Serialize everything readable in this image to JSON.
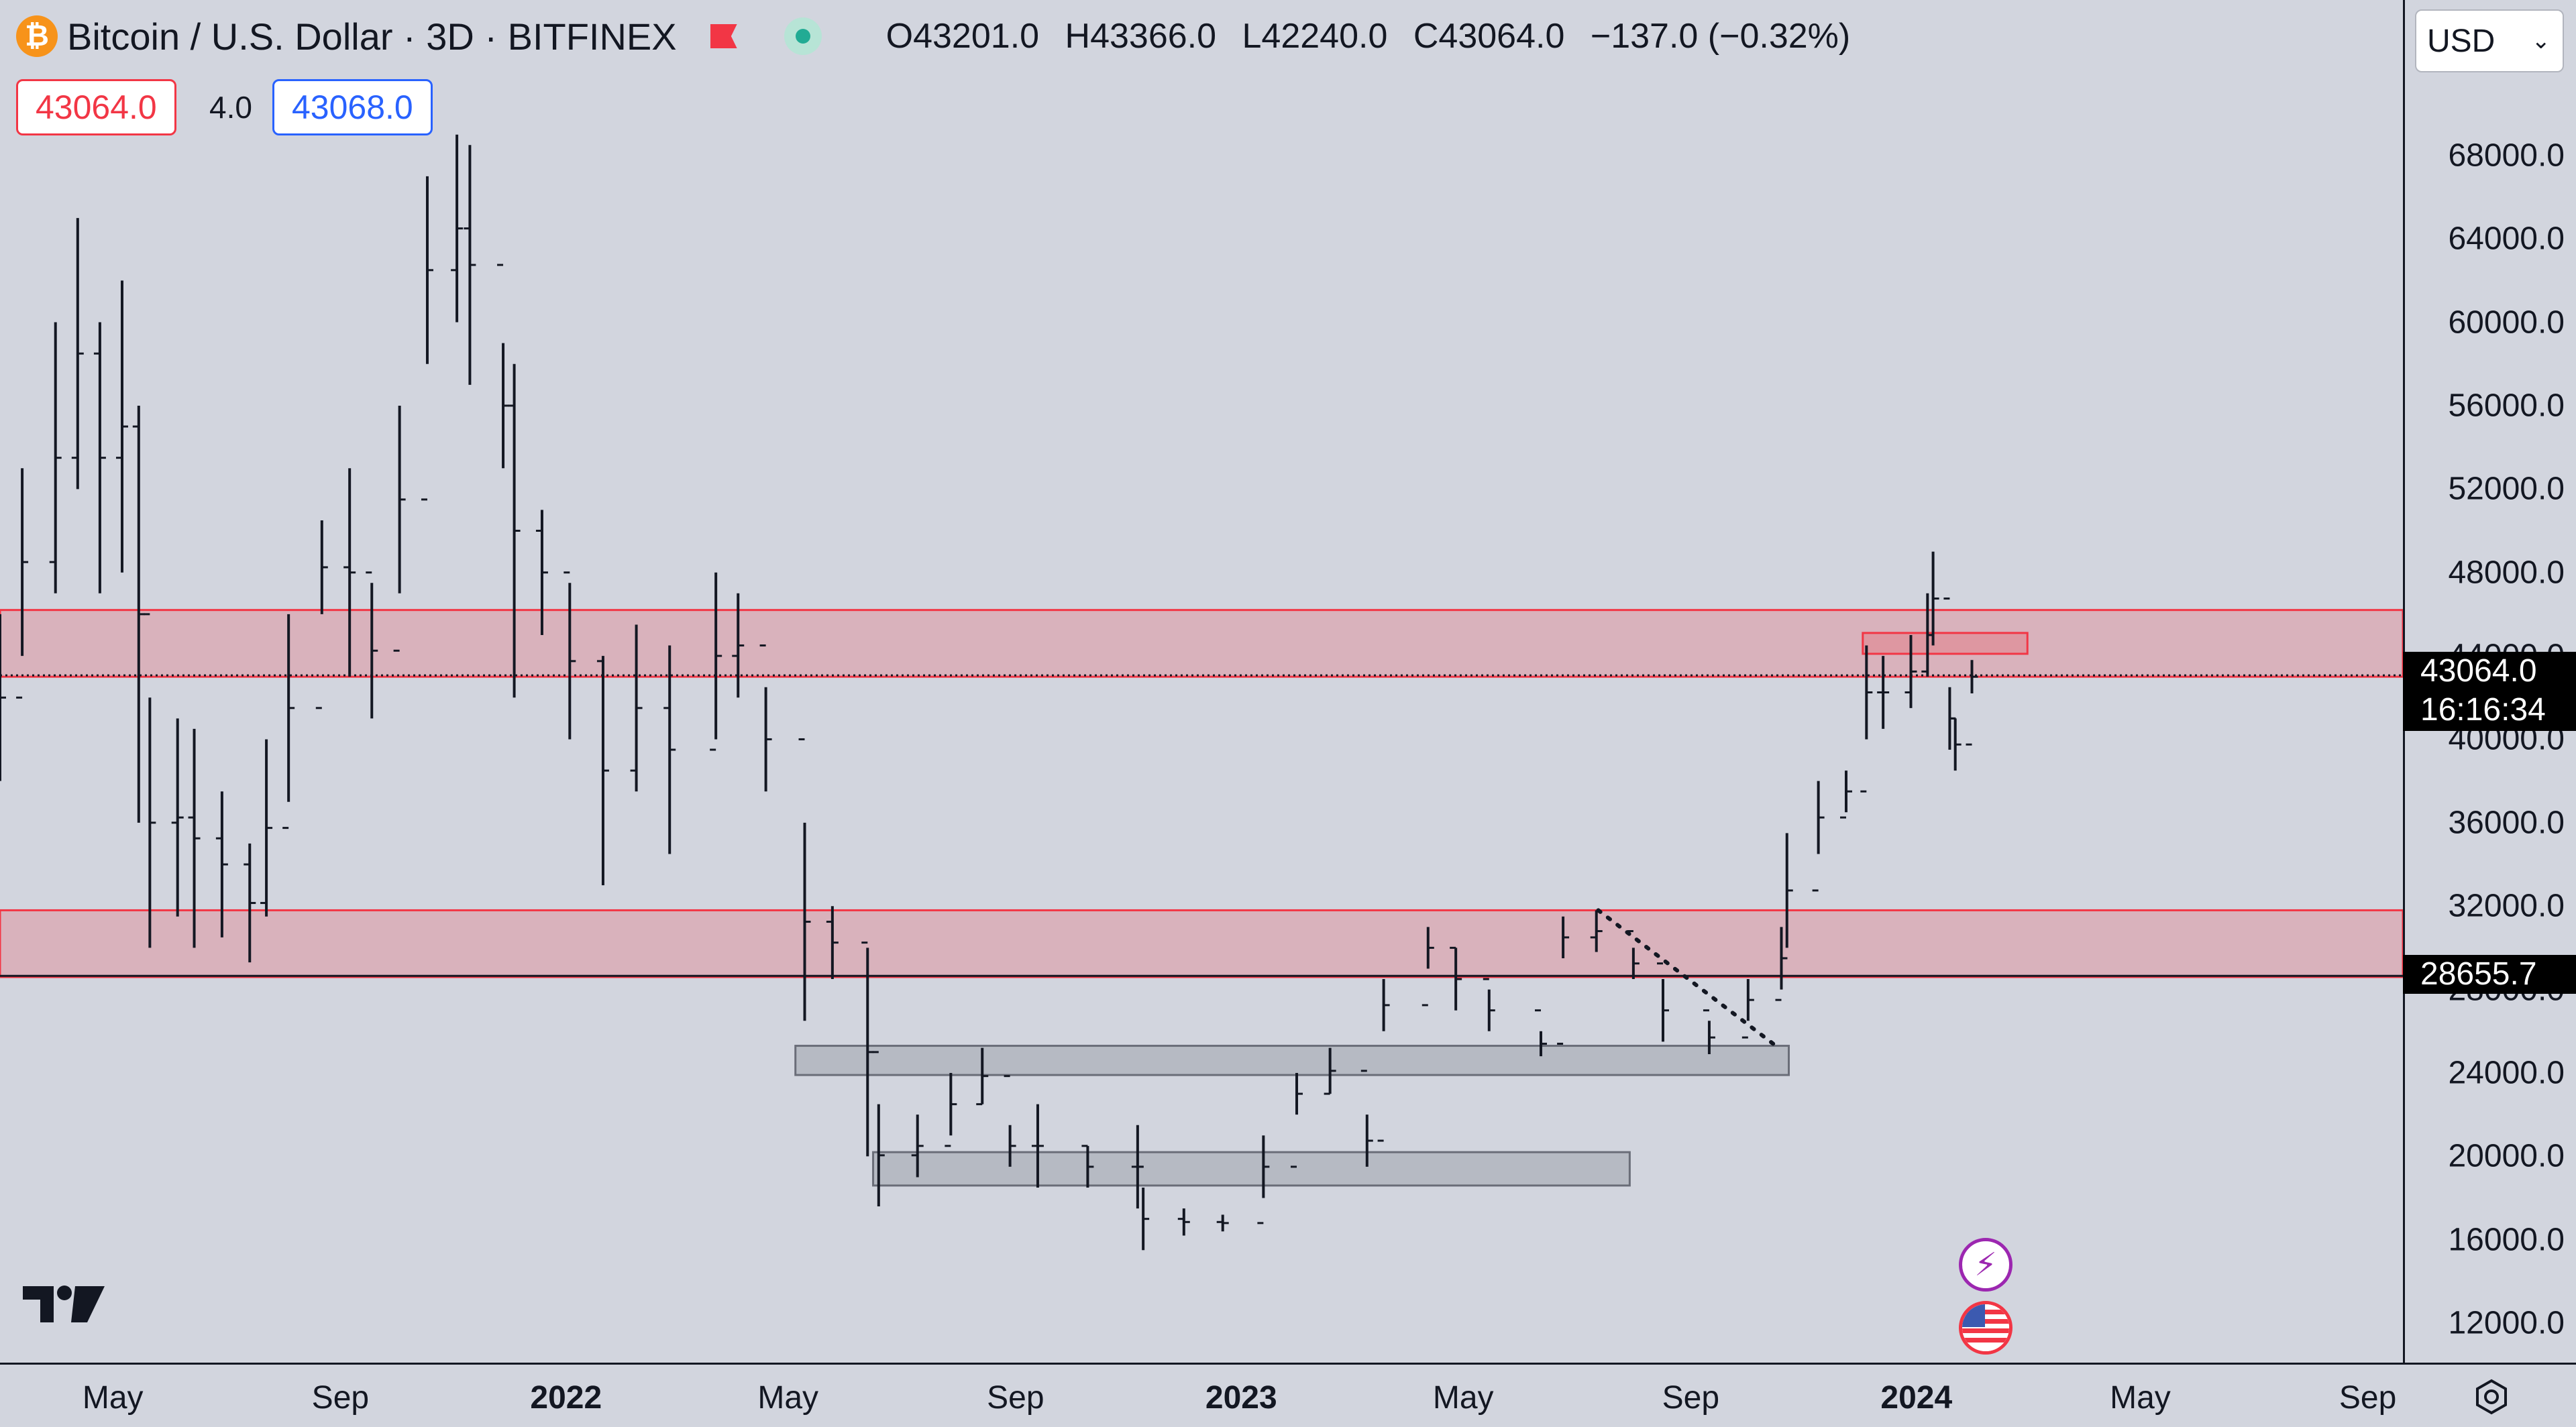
{
  "header": {
    "coin_glyph": "₿",
    "title": "Bitcoin / U.S. Dollar · 3D · BITFINEX",
    "ohlc": {
      "o": "O43201.0",
      "h": "H43366.0",
      "l": "L42240.0",
      "c": "C43064.0",
      "change": "−137.0 (−0.32%)"
    }
  },
  "trade": {
    "sell": "43064.0",
    "spread": "4.0",
    "buy": "43068.0"
  },
  "currency": "USD",
  "icons": [
    "bitcoin-icon",
    "flag-icon",
    "market-status-icon",
    "tradingview-logo",
    "bolt-icon",
    "us-flag-icon",
    "settings-icon"
  ],
  "colors": {
    "zone_red": "#f23645",
    "zone_gray": "#9598a1",
    "bar": "#131722",
    "background": "#d2d5de"
  },
  "price_axis": {
    "ticks": [
      "68000.0",
      "64000.0",
      "60000.0",
      "56000.0",
      "52000.0",
      "48000.0",
      "44000.0",
      "40000.0",
      "36000.0",
      "32000.0",
      "28000.0",
      "24000.0",
      "20000.0",
      "16000.0",
      "12000.0"
    ],
    "last_price": "43064.0",
    "countdown": "16:16:34",
    "level_label": "28655.7"
  },
  "time_axis": {
    "ticks": [
      {
        "label": "May",
        "bold": false
      },
      {
        "label": "Sep",
        "bold": false
      },
      {
        "label": "2022",
        "bold": true
      },
      {
        "label": "May",
        "bold": false
      },
      {
        "label": "Sep",
        "bold": false
      },
      {
        "label": "2023",
        "bold": true
      },
      {
        "label": "May",
        "bold": false
      },
      {
        "label": "Sep",
        "bold": false
      },
      {
        "label": "2024",
        "bold": true
      },
      {
        "label": "May",
        "bold": false
      },
      {
        "label": "Sep",
        "bold": false
      }
    ]
  },
  "chart_data": {
    "type": "ohlc-bar",
    "timeframe": "3D",
    "symbol": "BTCUSD",
    "exchange": "BITFINEX",
    "x_range": [
      "2021-03-01",
      "2024-09-20"
    ],
    "y_range": [
      10000,
      71000
    ],
    "y_ticks": [
      12000,
      16000,
      20000,
      24000,
      28000,
      32000,
      36000,
      40000,
      44000,
      48000,
      52000,
      56000,
      60000,
      64000,
      68000
    ],
    "last_price": 43064.0,
    "horizontal_lines": [
      {
        "price": 43064.0,
        "style": "dotted"
      },
      {
        "price": 28655.7,
        "style": "solid"
      }
    ],
    "zones": [
      {
        "label": "resistance",
        "from": "2021-03-01",
        "to": "2024-09-20",
        "low": 43000,
        "high": 46200,
        "color": "red"
      },
      {
        "label": "support-resistance",
        "from": "2021-03-01",
        "to": "2024-09-20",
        "low": 28600,
        "high": 31800,
        "color": "red"
      },
      {
        "label": "box",
        "from": "2023-12-03",
        "to": "2024-03-01",
        "low": 44100,
        "high": 45100,
        "color": "red"
      },
      {
        "label": "support",
        "from": "2022-05-05",
        "to": "2023-10-24",
        "low": 23900,
        "high": 25300,
        "color": "gray"
      },
      {
        "label": "support",
        "from": "2022-06-16",
        "to": "2023-07-30",
        "low": 18600,
        "high": 20200,
        "color": "gray"
      }
    ],
    "trendline": {
      "from": [
        "2023-07-13",
        31800
      ],
      "to": [
        "2023-10-17",
        25300
      ],
      "style": "dotted"
    },
    "bars": [
      {
        "date": "2021-03-01",
        "high": 46000,
        "low": 38000
      },
      {
        "date": "2021-03-13",
        "high": 53000,
        "low": 44000
      },
      {
        "date": "2021-03-31",
        "high": 60000,
        "low": 47000
      },
      {
        "date": "2021-04-12",
        "high": 65000,
        "low": 52000
      },
      {
        "date": "2021-04-24",
        "high": 60000,
        "low": 47000
      },
      {
        "date": "2021-05-06",
        "high": 62000,
        "low": 48000
      },
      {
        "date": "2021-05-15",
        "high": 56000,
        "low": 36000
      },
      {
        "date": "2021-05-21",
        "high": 42000,
        "low": 30000
      },
      {
        "date": "2021-06-05",
        "high": 41000,
        "low": 31500
      },
      {
        "date": "2021-06-14",
        "high": 40500,
        "low": 30000
      },
      {
        "date": "2021-06-29",
        "high": 37500,
        "low": 30500
      },
      {
        "date": "2021-07-14",
        "high": 35000,
        "low": 29300
      },
      {
        "date": "2021-07-23",
        "high": 40000,
        "low": 31500
      },
      {
        "date": "2021-08-04",
        "high": 46000,
        "low": 37000
      },
      {
        "date": "2021-08-22",
        "high": 50500,
        "low": 46000
      },
      {
        "date": "2021-09-06",
        "high": 53000,
        "low": 43000
      },
      {
        "date": "2021-09-18",
        "high": 47500,
        "low": 41000
      },
      {
        "date": "2021-10-03",
        "high": 56000,
        "low": 47000
      },
      {
        "date": "2021-10-18",
        "high": 67000,
        "low": 58000
      },
      {
        "date": "2021-11-03",
        "high": 69000,
        "low": 60000
      },
      {
        "date": "2021-11-10",
        "high": 68500,
        "low": 57000
      },
      {
        "date": "2021-11-28",
        "high": 59000,
        "low": 53000
      },
      {
        "date": "2021-12-04",
        "high": 58000,
        "low": 42000
      },
      {
        "date": "2021-12-19",
        "high": 51000,
        "low": 45000
      },
      {
        "date": "2022-01-03",
        "high": 47500,
        "low": 40000
      },
      {
        "date": "2022-01-21",
        "high": 44000,
        "low": 33000
      },
      {
        "date": "2022-02-08",
        "high": 45500,
        "low": 37500
      },
      {
        "date": "2022-02-26",
        "high": 44500,
        "low": 34500
      },
      {
        "date": "2022-03-23",
        "high": 48000,
        "low": 40000
      },
      {
        "date": "2022-04-04",
        "high": 47000,
        "low": 42000
      },
      {
        "date": "2022-04-19",
        "high": 42500,
        "low": 37500
      },
      {
        "date": "2022-05-10",
        "high": 36000,
        "low": 26500
      },
      {
        "date": "2022-05-25",
        "high": 32000,
        "low": 28500
      },
      {
        "date": "2022-06-13",
        "high": 30000,
        "low": 20000
      },
      {
        "date": "2022-06-19",
        "high": 22500,
        "low": 17600
      },
      {
        "date": "2022-07-10",
        "high": 22000,
        "low": 19000
      },
      {
        "date": "2022-07-28",
        "high": 24000,
        "low": 21000
      },
      {
        "date": "2022-08-14",
        "high": 25200,
        "low": 22500
      },
      {
        "date": "2022-08-29",
        "high": 21500,
        "low": 19500
      },
      {
        "date": "2022-09-13",
        "high": 22500,
        "low": 18500
      },
      {
        "date": "2022-10-10",
        "high": 20500,
        "low": 18500
      },
      {
        "date": "2022-11-06",
        "high": 21500,
        "low": 17500
      },
      {
        "date": "2022-11-09",
        "high": 18500,
        "low": 15500
      },
      {
        "date": "2022-12-01",
        "high": 17500,
        "low": 16200
      },
      {
        "date": "2022-12-22",
        "high": 17200,
        "low": 16400
      },
      {
        "date": "2023-01-13",
        "high": 21000,
        "low": 18000
      },
      {
        "date": "2023-01-31",
        "high": 24000,
        "low": 22000
      },
      {
        "date": "2023-02-18",
        "high": 25200,
        "low": 23000
      },
      {
        "date": "2023-03-10",
        "high": 22000,
        "low": 19500
      },
      {
        "date": "2023-03-19",
        "high": 28500,
        "low": 26000
      },
      {
        "date": "2023-04-12",
        "high": 31000,
        "low": 29000
      },
      {
        "date": "2023-04-27",
        "high": 30000,
        "low": 27000
      },
      {
        "date": "2023-05-15",
        "high": 28000,
        "low": 26000
      },
      {
        "date": "2023-06-12",
        "high": 26000,
        "low": 24800
      },
      {
        "date": "2023-06-24",
        "high": 31500,
        "low": 29500
      },
      {
        "date": "2023-07-12",
        "high": 31800,
        "low": 29800
      },
      {
        "date": "2023-08-01",
        "high": 30000,
        "low": 28500
      },
      {
        "date": "2023-08-17",
        "high": 28500,
        "low": 25500
      },
      {
        "date": "2023-09-11",
        "high": 26500,
        "low": 24900
      },
      {
        "date": "2023-10-02",
        "high": 28500,
        "low": 26500
      },
      {
        "date": "2023-10-20",
        "high": 31000,
        "low": 28000
      },
      {
        "date": "2023-10-23",
        "high": 35500,
        "low": 30000
      },
      {
        "date": "2023-11-09",
        "high": 38000,
        "low": 34500
      },
      {
        "date": "2023-11-24",
        "high": 38500,
        "low": 36500
      },
      {
        "date": "2023-12-05",
        "high": 44500,
        "low": 40000
      },
      {
        "date": "2023-12-14",
        "high": 44000,
        "low": 40500
      },
      {
        "date": "2023-12-29",
        "high": 45000,
        "low": 41500
      },
      {
        "date": "2024-01-07",
        "high": 47000,
        "low": 43000
      },
      {
        "date": "2024-01-10",
        "high": 49000,
        "low": 44500
      },
      {
        "date": "2024-01-19",
        "high": 42500,
        "low": 39500
      },
      {
        "date": "2024-01-22",
        "high": 41000,
        "low": 38500
      },
      {
        "date": "2024-01-31",
        "high": 43800,
        "low": 42200
      }
    ]
  }
}
